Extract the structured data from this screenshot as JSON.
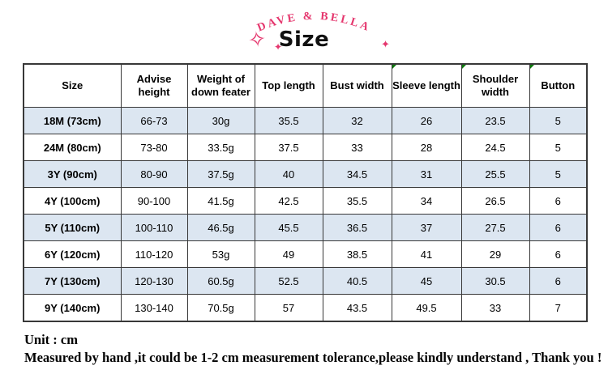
{
  "brand": {
    "name": "DAVE  &  BELLA",
    "color": "#e5376e"
  },
  "title": "Size",
  "icons": {
    "sparkle_outline": "✧",
    "sparkle_filled": "✦"
  },
  "table": {
    "columns": [
      "Size",
      "Advise height",
      "Weight of down feater",
      "Top length",
      "Bust width",
      "Sleeve length",
      "Shoulder width",
      "Button"
    ],
    "note_marker_columns": [
      5,
      6,
      7
    ],
    "rows": [
      {
        "size": "18M (73cm)",
        "values": [
          "66-73",
          "30g",
          "35.5",
          "32",
          "26",
          "23.5",
          "5"
        ]
      },
      {
        "size": "24M (80cm)",
        "values": [
          "73-80",
          "33.5g",
          "37.5",
          "33",
          "28",
          "24.5",
          "5"
        ]
      },
      {
        "size": "3Y (90cm)",
        "values": [
          "80-90",
          "37.5g",
          "40",
          "34.5",
          "31",
          "25.5",
          "5"
        ]
      },
      {
        "size": "4Y (100cm)",
        "values": [
          "90-100",
          "41.5g",
          "42.5",
          "35.5",
          "34",
          "26.5",
          "6"
        ]
      },
      {
        "size": "5Y (110cm)",
        "values": [
          "100-110",
          "46.5g",
          "45.5",
          "36.5",
          "37",
          "27.5",
          "6"
        ]
      },
      {
        "size": "6Y (120cm)",
        "values": [
          "110-120",
          "53g",
          "49",
          "38.5",
          "41",
          "29",
          "6"
        ]
      },
      {
        "size": "7Y (130cm)",
        "values": [
          "120-130",
          "60.5g",
          "52.5",
          "40.5",
          "45",
          "30.5",
          "6"
        ]
      },
      {
        "size": "9Y (140cm)",
        "values": [
          "130-140",
          "70.5g",
          "57",
          "43.5",
          "49.5",
          "33",
          "7"
        ]
      }
    ]
  },
  "colors": {
    "row_alt": "#dce6f1",
    "border": "#383838",
    "note_marker": "#0c7a0c"
  },
  "footer": {
    "unit": "Unit : cm",
    "note": "Measured by hand ,it could be 1-2 cm measurement tolerance,please kindly understand , Thank you !"
  }
}
